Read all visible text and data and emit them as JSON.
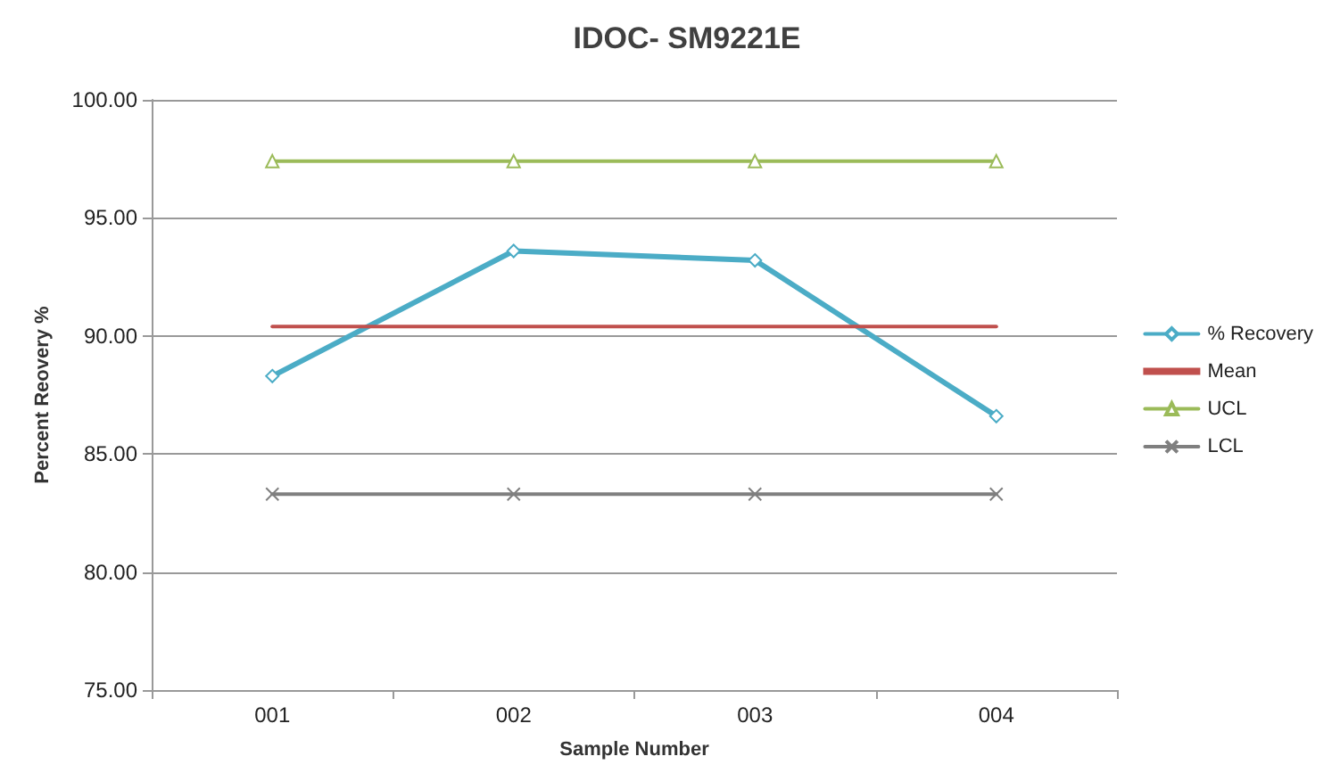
{
  "chart_data": {
    "type": "line",
    "title": "IDOC- SM9221E",
    "xlabel": "Sample Number",
    "ylabel": "Percent Reovery %",
    "categories": [
      "001",
      "002",
      "003",
      "004"
    ],
    "series": [
      {
        "name": "% Recovery",
        "color": "#4bacc6",
        "marker": "diamond",
        "values": [
          88.3,
          93.6,
          93.2,
          86.6
        ]
      },
      {
        "name": "Mean",
        "color": "#c0504d",
        "marker": "none",
        "values": [
          90.4,
          90.4,
          90.4,
          90.4
        ]
      },
      {
        "name": "UCL",
        "color": "#9bbb59",
        "marker": "triangle",
        "values": [
          97.4,
          97.4,
          97.4,
          97.4
        ]
      },
      {
        "name": "LCL",
        "color": "#7f7f7f",
        "marker": "cross",
        "values": [
          83.3,
          83.3,
          83.3,
          83.3
        ]
      }
    ],
    "ylim": [
      75,
      100
    ],
    "yticks": [
      {
        "value": 75,
        "label": "75.00"
      },
      {
        "value": 80,
        "label": "80.00"
      },
      {
        "value": 85,
        "label": "85.00"
      },
      {
        "value": 90,
        "label": "90.00"
      },
      {
        "value": 95,
        "label": "95.00"
      },
      {
        "value": 100,
        "label": "100.00"
      }
    ],
    "grid": "y",
    "legend": "right"
  }
}
